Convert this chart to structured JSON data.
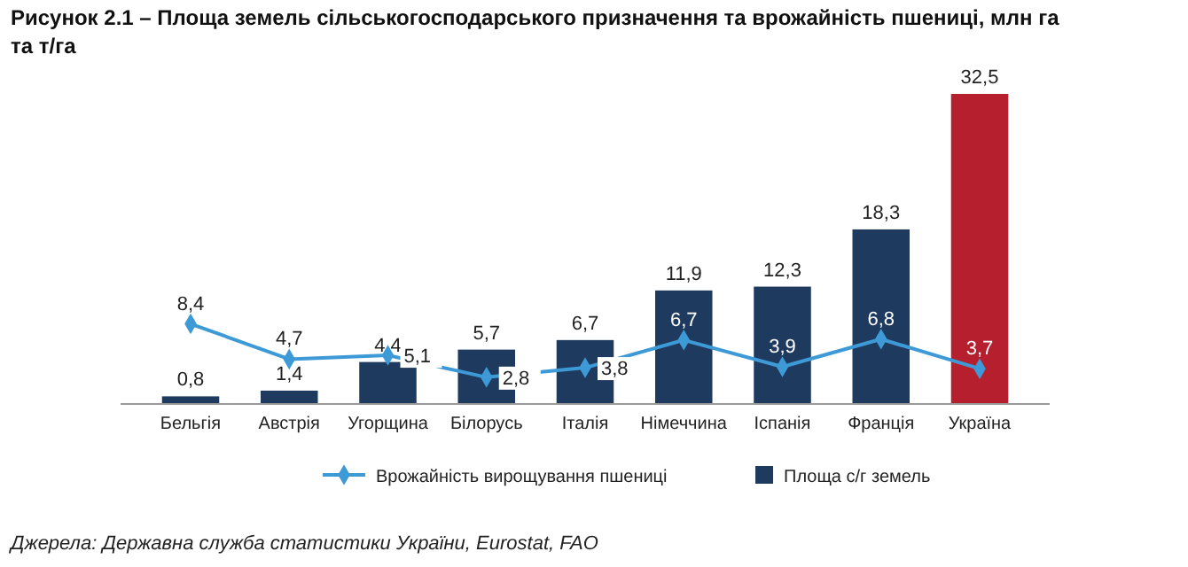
{
  "chart_data": {
    "type": "bar",
    "title": "Рисунок 2.1 – Площа земель сільськогосподарського призначення та врожайність пшениці,  млн га та т/га",
    "categories": [
      "Бельгія",
      "Австрія",
      "Угорщина",
      "Білорусь",
      "Італія",
      "Німеччина",
      "Іспанія",
      "Франція",
      "Україна"
    ],
    "series": [
      {
        "name": "Врожайність вирощування пшениці",
        "type": "line",
        "color": "#3d9ad6",
        "marker": "diamond",
        "values": [
          8.4,
          4.7,
          5.1,
          2.8,
          3.8,
          6.7,
          3.9,
          6.8,
          3.7
        ],
        "value_labels": [
          "8,4",
          "4,7",
          "5,1",
          "2,8",
          "3,8",
          "6,7",
          "3,9",
          "6,8",
          "3,7"
        ]
      },
      {
        "name": "Площа с/г земель",
        "color": "#1f3a5f",
        "colors": [
          "#1f3a5f",
          "#1f3a5f",
          "#1f3a5f",
          "#1f3a5f",
          "#1f3a5f",
          "#1f3a5f",
          "#1f3a5f",
          "#1f3a5f",
          "#b51f2e"
        ],
        "values": [
          0.8,
          1.4,
          4.4,
          5.7,
          6.7,
          11.9,
          12.3,
          18.3,
          32.5
        ],
        "value_labels": [
          "0,8",
          "1,4",
          "4,4",
          "5,7",
          "6,7",
          "11,9",
          "12,3",
          "18,3",
          "32,5"
        ]
      }
    ],
    "legend": "bottom",
    "annotations": [
      "Джерела: Державна служба статистики України, Eurostat, FAO"
    ]
  }
}
